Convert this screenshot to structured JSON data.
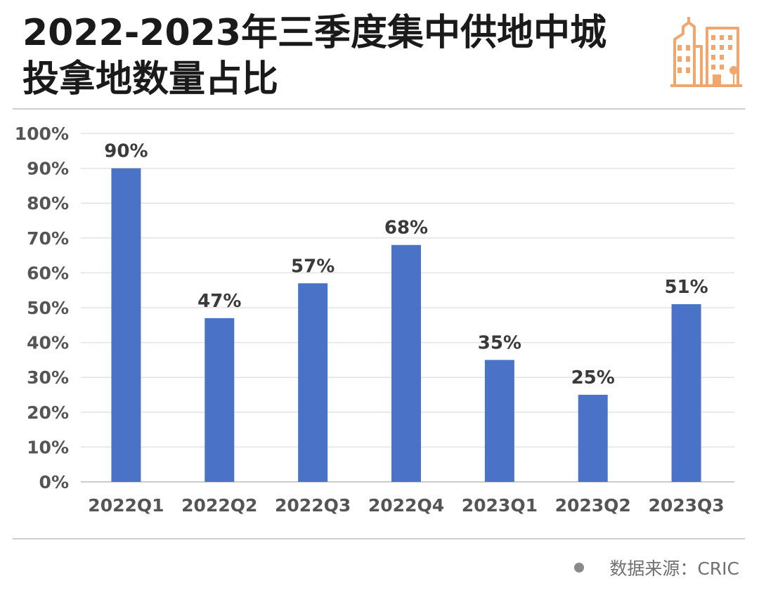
{
  "title": {
    "line1": "2022-2023年三季度集中供地中城",
    "line2": "投拿地数量占比"
  },
  "logo_icon": "city-buildings-icon",
  "colors": {
    "bar": "#4a73c8",
    "accent": "#f0a66d",
    "grid": "#e3e3e3"
  },
  "chart_data": {
    "type": "bar",
    "categories": [
      "2022Q1",
      "2022Q2",
      "2022Q3",
      "2022Q4",
      "2023Q1",
      "2023Q2",
      "2023Q3"
    ],
    "values": [
      90,
      47,
      57,
      68,
      35,
      25,
      51
    ],
    "data_labels": [
      "90%",
      "47%",
      "57%",
      "68%",
      "35%",
      "25%",
      "51%"
    ],
    "ylim": [
      0,
      100
    ],
    "yticks": [
      "0%",
      "10%",
      "20%",
      "30%",
      "40%",
      "50%",
      "60%",
      "70%",
      "80%",
      "90%",
      "100%"
    ],
    "grid": true,
    "title": "",
    "xlabel": "",
    "ylabel": ""
  },
  "source": {
    "label": "数据来源：CRIC"
  }
}
